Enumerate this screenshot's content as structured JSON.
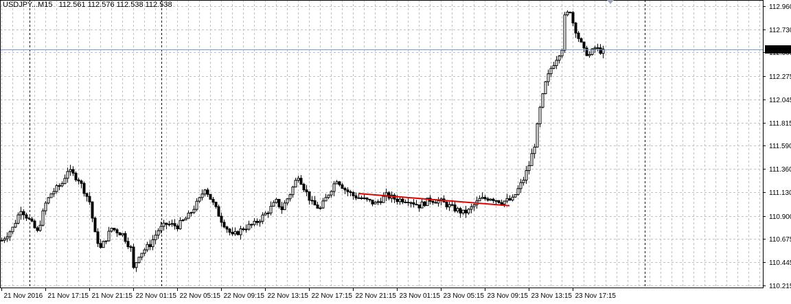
{
  "header": {
    "symbol_timeframe": "USDJPY...M15",
    "ohlc": "112.561 112.576 112.538 112.538"
  },
  "price_tag": "112.538",
  "colors": {
    "grid": "#c0c0c0",
    "candle": "#000000",
    "bull_fill": "#ffffff",
    "bear_fill": "#000000",
    "bid_line": "#7f96b8",
    "trend_line": "#e00000",
    "price_tag_bg": "#000000",
    "price_tag_text": "#ffffff"
  },
  "chart_data": {
    "type": "candlestick",
    "series_name": "USDJPY M15",
    "y_ticks": [
      110.215,
      110.445,
      110.675,
      110.9,
      111.13,
      111.36,
      111.59,
      111.815,
      112.045,
      112.275,
      112.505,
      112.73,
      112.96
    ],
    "y_tick_labels": [
      "110.215",
      "110.445",
      "110.675",
      "110.900",
      "111.130",
      "111.360",
      "111.590",
      "111.815",
      "112.045",
      "112.275",
      "112.505",
      "112.730",
      "112.960"
    ],
    "ylim": [
      110.19,
      113.02
    ],
    "x_tick_labels": [
      "21 Nov 2016",
      "21 Nov 17:15",
      "21 Nov 21:15",
      "22 Nov 01:15",
      "22 Nov 05:15",
      "22 Nov 09:15",
      "22 Nov 13:15",
      "22 Nov 17:15",
      "22 Nov 21:15",
      "23 Nov 01:15",
      "23 Nov 05:15",
      "23 Nov 09:15",
      "23 Nov 13:15",
      "23 Nov 17:15"
    ],
    "bars_per_x_label": 16,
    "last_price": 112.538,
    "trend_line": {
      "from": {
        "bar": 130,
        "price": 111.12
      },
      "to": {
        "bar": 185,
        "price": 111.0
      }
    },
    "anchor_points": [
      [
        0,
        110.66
      ],
      [
        4,
        110.78
      ],
      [
        7,
        110.97
      ],
      [
        10,
        110.86
      ],
      [
        13,
        110.74
      ],
      [
        16,
        111.02
      ],
      [
        18,
        111.12
      ],
      [
        22,
        111.22
      ],
      [
        24,
        111.35
      ],
      [
        28,
        111.26
      ],
      [
        32,
        111.04
      ],
      [
        34,
        110.72
      ],
      [
        36,
        110.58
      ],
      [
        40,
        110.78
      ],
      [
        44,
        110.72
      ],
      [
        47,
        110.58
      ],
      [
        48,
        110.38
      ],
      [
        50,
        110.52
      ],
      [
        54,
        110.62
      ],
      [
        57,
        110.76
      ],
      [
        60,
        110.82
      ],
      [
        64,
        110.8
      ],
      [
        68,
        110.9
      ],
      [
        72,
        111.06
      ],
      [
        74,
        111.18
      ],
      [
        77,
        111.02
      ],
      [
        80,
        110.86
      ],
      [
        84,
        110.7
      ],
      [
        88,
        110.78
      ],
      [
        92,
        110.82
      ],
      [
        96,
        110.92
      ],
      [
        100,
        111.04
      ],
      [
        102,
        110.97
      ],
      [
        105,
        111.12
      ],
      [
        108,
        111.3
      ],
      [
        110,
        111.18
      ],
      [
        113,
        111.02
      ],
      [
        116,
        110.97
      ],
      [
        119,
        111.12
      ],
      [
        122,
        111.26
      ],
      [
        125,
        111.16
      ],
      [
        128,
        111.1
      ],
      [
        132,
        111.06
      ],
      [
        136,
        111.02
      ],
      [
        140,
        111.1
      ],
      [
        144,
        111.06
      ],
      [
        148,
        111.06
      ],
      [
        152,
        111.0
      ],
      [
        156,
        111.06
      ],
      [
        160,
        111.04
      ],
      [
        164,
        110.98
      ],
      [
        168,
        110.93
      ],
      [
        170,
        110.95
      ],
      [
        174,
        111.06
      ],
      [
        178,
        111.08
      ],
      [
        182,
        111.04
      ],
      [
        186,
        111.06
      ],
      [
        188,
        111.16
      ],
      [
        190,
        111.26
      ],
      [
        192,
        111.4
      ],
      [
        194,
        111.6
      ],
      [
        196,
        111.95
      ],
      [
        198,
        112.2
      ],
      [
        200,
        112.35
      ],
      [
        202,
        112.45
      ],
      [
        204,
        112.55
      ],
      [
        205,
        112.85
      ],
      [
        207,
        112.92
      ],
      [
        208,
        112.8
      ],
      [
        210,
        112.65
      ],
      [
        212,
        112.52
      ],
      [
        214,
        112.48
      ],
      [
        216,
        112.55
      ],
      [
        218,
        112.52
      ],
      [
        219,
        112.54
      ]
    ]
  }
}
